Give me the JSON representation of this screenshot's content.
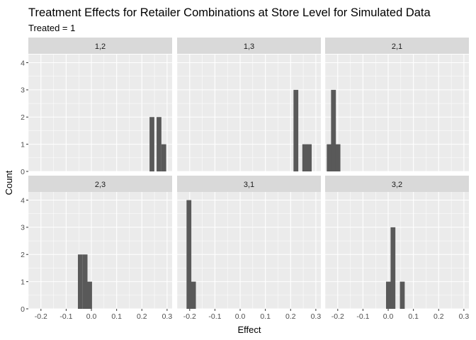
{
  "chart_data": {
    "type": "bar",
    "title": "Treatment Effects for Retailer Combinations at Store Level for Simulated Data",
    "subtitle": "Treated = 1",
    "xlabel": "Effect",
    "ylabel": "Count",
    "xlim": [
      -0.25,
      0.32
    ],
    "ylim": [
      0,
      4.3
    ],
    "xticks": [
      -0.2,
      -0.1,
      0.0,
      0.1,
      0.2,
      0.3
    ],
    "xtick_labels": [
      "-0.2",
      "-0.1",
      "0.0",
      "0.1",
      "0.2",
      "0.3"
    ],
    "yticks": [
      0,
      1,
      2,
      3,
      4
    ],
    "ytick_labels": [
      "0",
      "1",
      "2",
      "3",
      "4"
    ],
    "grid": true,
    "bin_width": 0.019,
    "panels": [
      {
        "label": "1,2",
        "bins": [
          {
            "x": 0.24,
            "count": 2
          },
          {
            "x": 0.268,
            "count": 2
          },
          {
            "x": 0.287,
            "count": 1
          }
        ]
      },
      {
        "label": "1,3",
        "bins": [
          {
            "x": 0.221,
            "count": 3
          },
          {
            "x": 0.256,
            "count": 1
          },
          {
            "x": 0.274,
            "count": 1
          }
        ]
      },
      {
        "label": "2,1",
        "bins": [
          {
            "x": -0.234,
            "count": 1
          },
          {
            "x": -0.217,
            "count": 3
          },
          {
            "x": -0.199,
            "count": 1
          }
        ]
      },
      {
        "label": "2,3",
        "bins": [
          {
            "x": -0.044,
            "count": 2
          },
          {
            "x": -0.025,
            "count": 2
          },
          {
            "x": -0.007,
            "count": 1
          }
        ]
      },
      {
        "label": "3,1",
        "bins": [
          {
            "x": -0.203,
            "count": 4
          },
          {
            "x": -0.185,
            "count": 1
          }
        ]
      },
      {
        "label": "3,2",
        "bins": [
          {
            "x": 0.001,
            "count": 1
          },
          {
            "x": 0.019,
            "count": 3
          },
          {
            "x": 0.056,
            "count": 1
          }
        ]
      }
    ]
  },
  "colors": {
    "panel_bg": "#ebebeb",
    "grid": "#ffffff",
    "strip_bg": "#d9d9d9",
    "bar": "#595959"
  }
}
